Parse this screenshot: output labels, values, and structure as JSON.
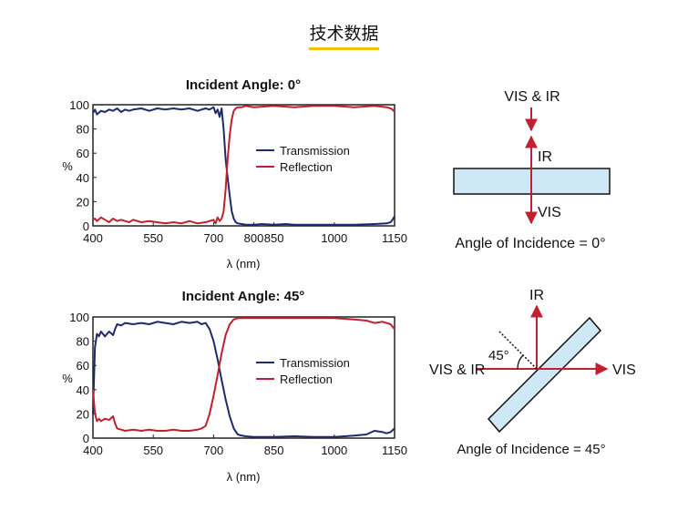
{
  "header": {
    "title": "技术数据"
  },
  "colors": {
    "transmission": "#1f2a6b",
    "reflection": "#c0202f",
    "glass_fill": "#cfe8f6",
    "accent_underline": "#f2c200"
  },
  "chart_data": [
    {
      "type": "line",
      "title": "Incident Angle: 0°",
      "xlabel": "λ (nm)",
      "ylabel": "%",
      "xlim": [
        400,
        1150
      ],
      "ylim": [
        0,
        100
      ],
      "xticks": [
        400,
        550,
        700,
        850,
        1000,
        1150
      ],
      "xtick_extra": [
        {
          "value": 800,
          "label": "800"
        }
      ],
      "yticks": [
        0,
        20,
        40,
        60,
        80,
        100
      ],
      "legend_position": "center",
      "series": [
        {
          "name": "Transmission",
          "x": [
            400,
            405,
            410,
            420,
            430,
            440,
            450,
            460,
            470,
            480,
            490,
            500,
            520,
            540,
            560,
            580,
            600,
            620,
            640,
            660,
            680,
            690,
            700,
            705,
            710,
            715,
            720,
            725,
            730,
            735,
            740,
            745,
            750,
            755,
            760,
            770,
            780,
            800,
            820,
            850,
            880,
            900,
            950,
            1000,
            1050,
            1100,
            1130,
            1140,
            1145,
            1150
          ],
          "y": [
            93,
            96,
            92,
            95,
            94,
            96,
            95,
            97,
            94,
            96,
            95,
            96,
            97,
            95,
            97,
            96,
            97,
            96,
            97,
            95,
            97,
            96,
            98,
            93,
            96,
            90,
            97,
            80,
            55,
            40,
            25,
            12,
            6,
            3,
            2,
            1.5,
            1,
            1,
            1.5,
            1,
            1.5,
            1,
            1,
            1,
            1,
            1.5,
            2,
            3,
            5,
            8
          ]
        },
        {
          "name": "Reflection",
          "x": [
            400,
            405,
            410,
            420,
            430,
            440,
            450,
            460,
            470,
            480,
            490,
            500,
            520,
            540,
            560,
            580,
            600,
            620,
            640,
            660,
            680,
            690,
            700,
            705,
            710,
            715,
            720,
            725,
            730,
            735,
            740,
            745,
            750,
            755,
            760,
            770,
            780,
            800,
            850,
            900,
            950,
            1000,
            1050,
            1100,
            1130,
            1140,
            1145,
            1150
          ],
          "y": [
            5,
            6,
            4,
            7,
            5,
            3,
            6,
            4,
            5,
            4,
            3,
            5,
            3,
            4,
            3,
            2,
            3,
            2,
            4,
            2,
            3,
            4,
            5,
            2,
            7,
            4,
            6,
            12,
            30,
            55,
            75,
            88,
            95,
            97,
            98,
            98,
            99,
            98,
            99,
            98,
            99,
            99,
            98,
            99,
            98,
            97,
            96,
            94
          ]
        }
      ]
    },
    {
      "type": "line",
      "title": "Incident Angle: 45°",
      "xlabel": "λ (nm)",
      "ylabel": "%",
      "xlim": [
        400,
        1150
      ],
      "ylim": [
        0,
        100
      ],
      "xticks": [
        400,
        550,
        700,
        850,
        1000,
        1150
      ],
      "yticks": [
        0,
        20,
        40,
        60,
        80,
        100
      ],
      "legend_position": "center",
      "series": [
        {
          "name": "Transmission",
          "x": [
            400,
            405,
            410,
            415,
            420,
            430,
            440,
            450,
            455,
            460,
            470,
            480,
            500,
            520,
            540,
            560,
            580,
            600,
            620,
            640,
            660,
            670,
            680,
            690,
            700,
            710,
            720,
            730,
            740,
            750,
            760,
            770,
            780,
            800,
            850,
            900,
            950,
            1000,
            1050,
            1080,
            1100,
            1120,
            1130,
            1140,
            1150
          ],
          "y": [
            20,
            75,
            86,
            84,
            88,
            84,
            88,
            85,
            90,
            94,
            93,
            95,
            94,
            95,
            94,
            96,
            95,
            94,
            96,
            95,
            96,
            94,
            95,
            90,
            80,
            65,
            48,
            32,
            18,
            8,
            3,
            2,
            1.5,
            1,
            1,
            1.5,
            1,
            1,
            2,
            3,
            6,
            5,
            4,
            5,
            8
          ]
        },
        {
          "name": "Reflection",
          "x": [
            400,
            405,
            410,
            415,
            420,
            430,
            440,
            450,
            455,
            460,
            470,
            480,
            500,
            520,
            540,
            560,
            580,
            600,
            620,
            640,
            660,
            670,
            680,
            690,
            700,
            710,
            720,
            730,
            740,
            750,
            760,
            770,
            780,
            800,
            850,
            900,
            950,
            1000,
            1050,
            1080,
            1100,
            1120,
            1130,
            1140,
            1150
          ],
          "y": [
            40,
            20,
            14,
            16,
            14,
            16,
            15,
            18,
            12,
            8,
            7,
            6,
            7,
            6,
            7,
            6,
            6,
            7,
            6,
            6,
            7,
            8,
            10,
            20,
            35,
            52,
            70,
            85,
            94,
            98,
            99,
            99,
            99,
            99,
            99,
            99,
            99,
            99,
            98,
            97,
            95,
            96,
            95,
            94,
            90
          ]
        }
      ]
    }
  ],
  "diagram_0": {
    "top_label": "VIS & IR",
    "reflected_label": "IR",
    "transmitted_label": "VIS",
    "caption": "Angle of Incidence = 0°"
  },
  "diagram_45": {
    "top_label": "IR",
    "left_label": "VIS & IR",
    "right_label": "VIS",
    "angle_label": "45°",
    "caption": "Angle of Incidence = 45°"
  }
}
